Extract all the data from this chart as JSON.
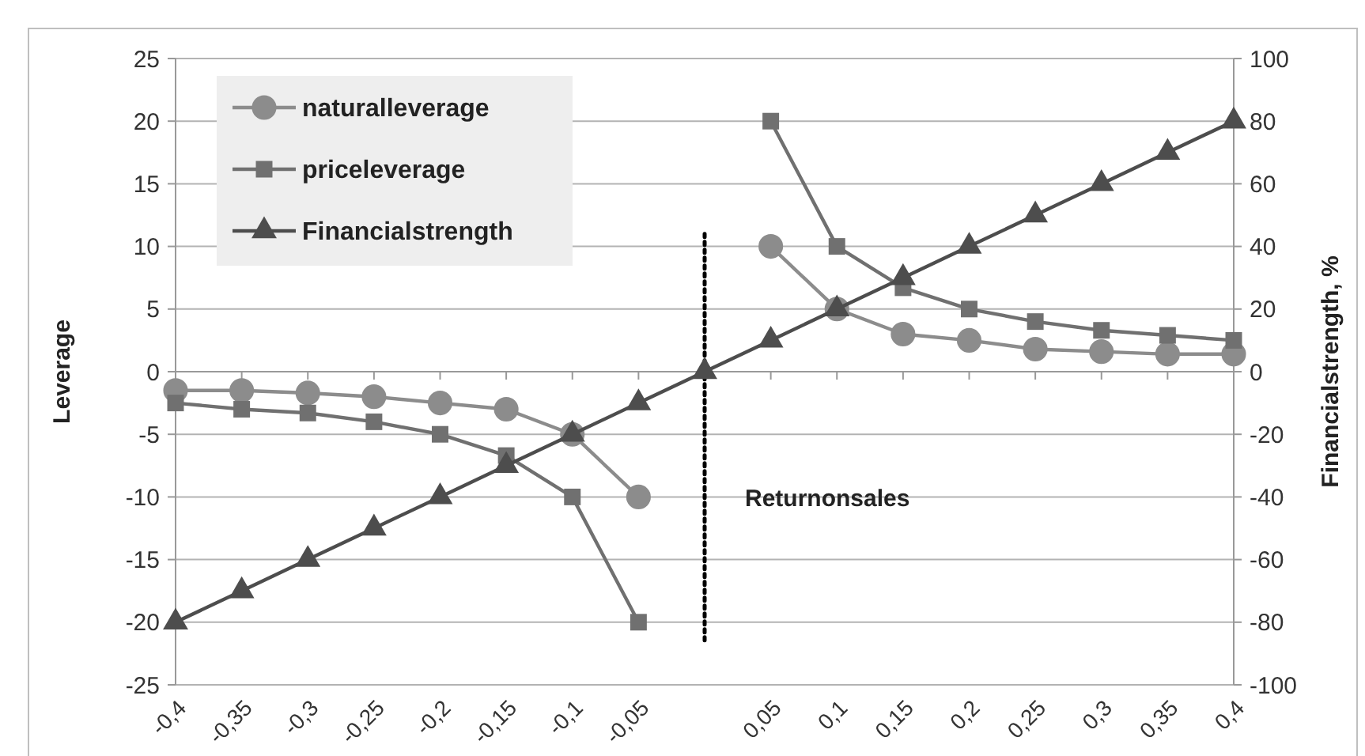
{
  "chart_data": {
    "type": "line",
    "x": [
      -0.4,
      -0.35,
      -0.3,
      -0.25,
      -0.2,
      -0.15,
      -0.1,
      -0.05,
      0,
      0.05,
      0.1,
      0.15,
      0.2,
      0.25,
      0.3,
      0.35,
      0.4
    ],
    "xlim": [
      -0.4,
      0.4
    ],
    "xticks": [
      {
        "value": -0.4,
        "label": "-0,4"
      },
      {
        "value": -0.35,
        "label": "-0,35"
      },
      {
        "value": -0.3,
        "label": "-0,3"
      },
      {
        "value": -0.25,
        "label": "-0,25"
      },
      {
        "value": -0.2,
        "label": "-0,2"
      },
      {
        "value": -0.15,
        "label": "-0,15"
      },
      {
        "value": -0.1,
        "label": "-0,1"
      },
      {
        "value": -0.05,
        "label": "-0,05"
      },
      {
        "value": 0,
        "label": null
      },
      {
        "value": 0.05,
        "label": "0,05"
      },
      {
        "value": 0.1,
        "label": "0,1"
      },
      {
        "value": 0.15,
        "label": "0,15"
      },
      {
        "value": 0.2,
        "label": "0,2"
      },
      {
        "value": 0.25,
        "label": "0,25"
      },
      {
        "value": 0.3,
        "label": "0,3"
      },
      {
        "value": 0.35,
        "label": "0,35"
      },
      {
        "value": 0.4,
        "label": "0,4"
      }
    ],
    "ylim": [
      -25,
      25
    ],
    "yticks": [
      -25,
      -20,
      -15,
      -10,
      -5,
      0,
      5,
      10,
      15,
      20,
      25
    ],
    "y2lim": [
      -100,
      100
    ],
    "y2ticks": [
      -100,
      -80,
      -60,
      -40,
      -20,
      0,
      20,
      40,
      60,
      80,
      100
    ],
    "xlabel": "Returnonsales",
    "ylabel": "Leverage",
    "y2label": "Financialstrength, %",
    "grid": "y",
    "legend": "top left",
    "series": [
      {
        "name": "naturalleverage",
        "color": "#8c8c8c",
        "marker": "circle",
        "values": [
          -1.5,
          -1.5,
          -1.7,
          -2,
          -2.5,
          -3,
          -5,
          -10,
          null,
          10,
          5,
          3,
          2.5,
          1.8,
          1.6,
          1.4,
          1.4
        ]
      },
      {
        "name": "priceleverage",
        "color": "#707070",
        "marker": "square",
        "values": [
          -2.5,
          -3,
          -3.3,
          -4,
          -5,
          -6.7,
          -10,
          -20,
          null,
          20,
          10,
          6.7,
          5,
          4,
          3.3,
          2.9,
          2.5
        ]
      },
      {
        "name": "Financialstrength",
        "color": "#4d4d4d",
        "marker": "triangle",
        "axis": "y2",
        "values": [
          -80,
          -70,
          -60,
          -50,
          -40,
          -30,
          -20,
          -10,
          0,
          10,
          20,
          30,
          40,
          50,
          60,
          70,
          80
        ]
      }
    ],
    "ref_lines": [
      {
        "axis": "x",
        "value": 0,
        "color": "#000000",
        "line_style": "dotted"
      }
    ]
  }
}
